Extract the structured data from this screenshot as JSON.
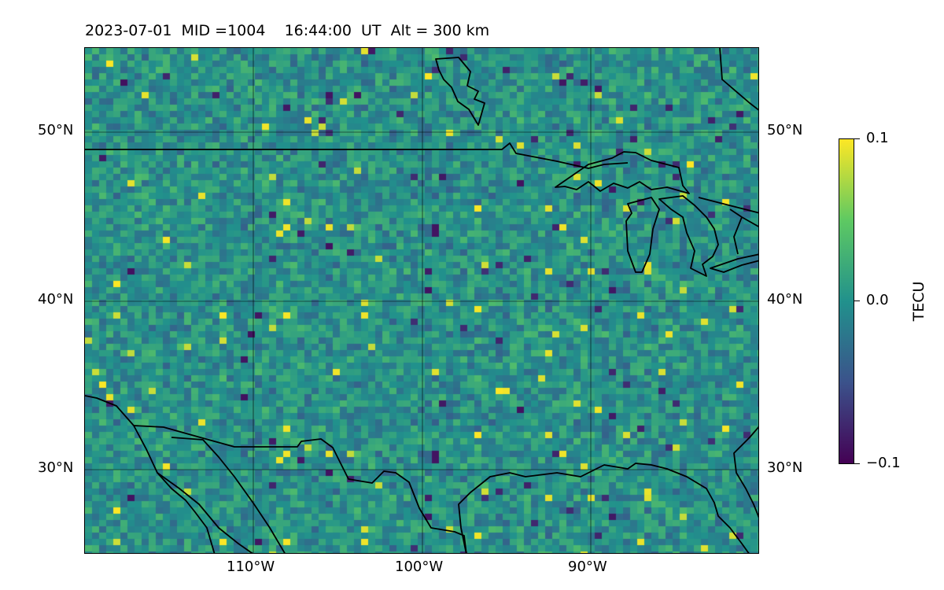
{
  "title": "2023-07-01  MID =1004    16:44:00  UT  Alt = 300 km",
  "map": {
    "lon_range": [
      -120,
      -80
    ],
    "lat_range": [
      25,
      55
    ],
    "lat_labels": [
      "50°N",
      "40°N",
      "30°N"
    ],
    "lon_labels": [
      "110°W",
      "100°W",
      "90°W"
    ],
    "lat_values": [
      50,
      40,
      30
    ],
    "lon_values": [
      -110,
      -100,
      -90
    ],
    "gridlines": true,
    "coastlines": true,
    "projection": "PlateCarree"
  },
  "colorbar": {
    "label": "TECU",
    "tick_labels": [
      "0.1",
      "0.0",
      "−0.1"
    ],
    "range": [
      -0.1,
      0.1
    ],
    "colormap": "viridis",
    "position": "right"
  },
  "colors": {
    "high": "#fde725",
    "mid": "#21918c",
    "low": "#440154"
  }
}
